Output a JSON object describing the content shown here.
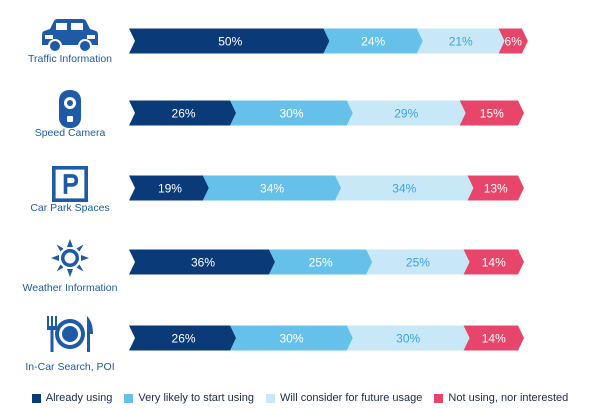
{
  "chart_data": {
    "type": "bar",
    "stacked": true,
    "orientation": "horizontal",
    "normalized": true,
    "unit": "%",
    "categories": [
      "Traffic Information",
      "Speed Camera",
      "Car Park Spaces",
      "Weather Information",
      "In-Car Search, POI"
    ],
    "icons": [
      "car-icon",
      "speed-camera-icon",
      "parking-icon",
      "sun-icon",
      "restaurant-icon"
    ],
    "series": [
      {
        "name": "Already using",
        "color": "#0b3a78",
        "label_color": "#ffffff",
        "values": [
          50,
          26,
          19,
          36,
          26
        ]
      },
      {
        "name": "Very likely to start using",
        "color": "#66c1ea",
        "label_color": "#ffffff",
        "values": [
          24,
          30,
          34,
          25,
          30
        ]
      },
      {
        "name": "Will consider for future usage",
        "color": "#c8e8f7",
        "label_color": "#3aa3dc",
        "values": [
          21,
          29,
          34,
          25,
          30
        ]
      },
      {
        "name": "Not using, nor interested",
        "color": "#e8456b",
        "label_color": "#ffffff",
        "values": [
          6,
          15,
          13,
          14,
          14
        ]
      }
    ],
    "legend_position": "bottom",
    "grid": false
  }
}
